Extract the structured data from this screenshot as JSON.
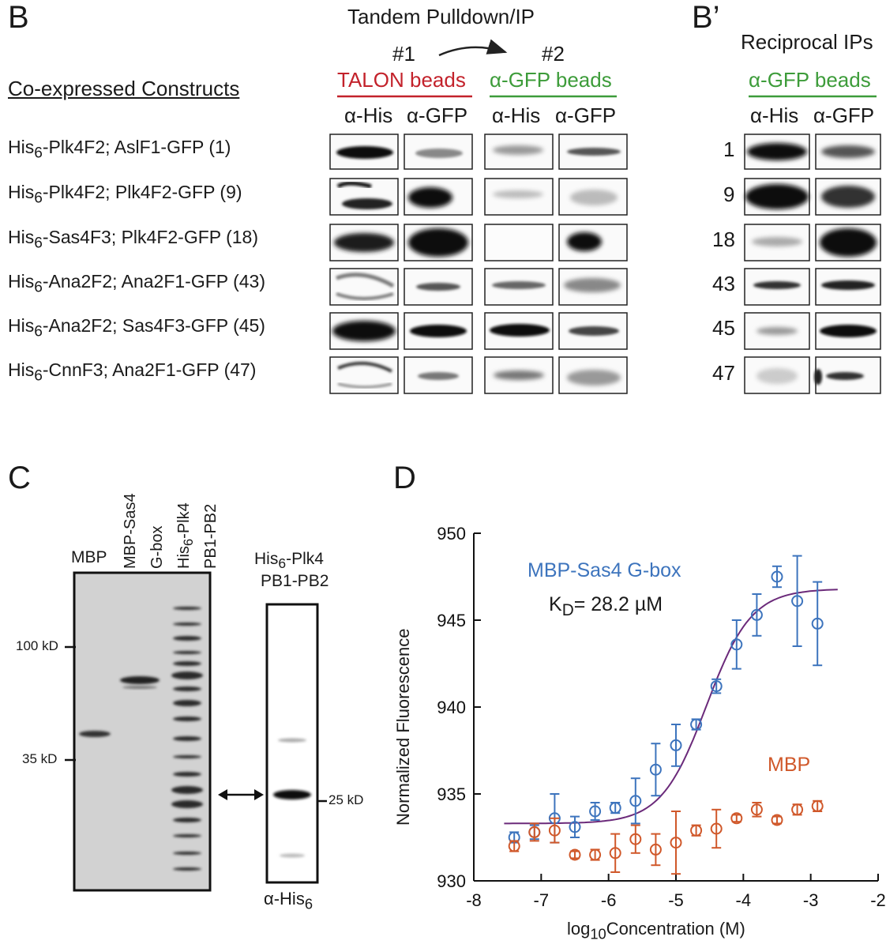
{
  "panelB": {
    "letter": "B",
    "title": "Tandem Pulldown/IP",
    "step1": "#1",
    "step2": "#2",
    "beads1": "TALON beads",
    "beads2": "α-GFP beads",
    "colHeaders": [
      "α-His",
      "α-GFP",
      "α-His",
      "α-GFP"
    ],
    "constructsHeader": "Co-expressed Constructs",
    "constructs": [
      {
        "pre": "His",
        "sub": "6",
        "post": "-Plk4F2; AslF1-GFP (1)"
      },
      {
        "pre": "His",
        "sub": "6",
        "post": "-Plk4F2; Plk4F2-GFP (9)"
      },
      {
        "pre": "His",
        "sub": "6",
        "post": "-Sas4F3; Plk4F2-GFP (18)"
      },
      {
        "pre": "His",
        "sub": "6",
        "post": "-Ana2F2; Ana2F1-GFP (43)"
      },
      {
        "pre": "His",
        "sub": "6",
        "post": "-Ana2F2; Sas4F3-GFP (45)"
      },
      {
        "pre": "His",
        "sub": "6",
        "post": "-CnnF3; Ana2F1-GFP (47)"
      }
    ]
  },
  "panelBprime": {
    "letter": "B’",
    "title": "Reciprocal IPs",
    "beads": "α-GFP beads",
    "colHeaders": [
      "α-His",
      "α-GFP"
    ],
    "rows": [
      "1",
      "9",
      "18",
      "43",
      "45",
      "47"
    ]
  },
  "panelC": {
    "letter": "C",
    "lanes": [
      "MBP",
      "MBP-Sas4",
      "G-box",
      "His6-Plk4",
      "PB1-PB2"
    ],
    "lane_his": {
      "pre": "His",
      "sub": "6",
      "post": "-Plk4"
    },
    "markers": [
      "100 kD",
      "35 kD"
    ],
    "inset_title1": {
      "pre": "His",
      "sub": "6",
      "post": "-Plk4"
    },
    "inset_title2": "PB1-PB2",
    "inset_marker": "25 kD",
    "inset_antibody": {
      "pre": "α-His",
      "sub": "6"
    }
  },
  "panelD": {
    "letter": "D",
    "chart_data": {
      "type": "scatter",
      "title": "",
      "xlabel": {
        "pre": "log",
        "sub": "10",
        "post": "Concentration (M)"
      },
      "ylabel": "Normalized Fluorescence",
      "xlim": [
        -8,
        -2
      ],
      "ylim": [
        930,
        950
      ],
      "xticks": [
        -8,
        -7,
        -6,
        -5,
        -4,
        -3,
        -2
      ],
      "yticks": [
        930,
        935,
        940,
        945,
        950
      ],
      "annotation": {
        "pre": "K",
        "sub": "D",
        "post": "= 28.2 µM"
      },
      "series": [
        {
          "name": "MBP-Sas4 G-box",
          "color": "#3d74bd",
          "x": [
            -7.4,
            -7.1,
            -6.8,
            -6.5,
            -6.2,
            -5.9,
            -5.6,
            -5.3,
            -5.0,
            -4.7,
            -4.4,
            -4.1,
            -3.8,
            -3.5,
            -3.2,
            -2.9
          ],
          "y": [
            932.5,
            932.8,
            933.6,
            933.1,
            934.0,
            934.2,
            934.6,
            936.4,
            937.8,
            939.0,
            941.2,
            943.6,
            945.3,
            947.5,
            946.1,
            944.8
          ],
          "err": [
            0.3,
            0.4,
            1.4,
            0.6,
            0.5,
            0.3,
            1.3,
            1.5,
            1.2,
            0.3,
            0.4,
            1.4,
            1.2,
            0.6,
            2.6,
            2.4
          ]
        },
        {
          "name": "MBP",
          "color": "#d0582a",
          "x": [
            -7.4,
            -7.1,
            -6.8,
            -6.5,
            -6.2,
            -5.9,
            -5.6,
            -5.3,
            -5.0,
            -4.7,
            -4.4,
            -4.1,
            -3.8,
            -3.5,
            -3.2,
            -2.9
          ],
          "y": [
            932.0,
            932.8,
            932.9,
            931.5,
            931.5,
            931.6,
            932.4,
            931.8,
            932.2,
            932.9,
            933.0,
            933.6,
            934.1,
            933.5,
            934.1,
            934.3
          ],
          "err": [
            0.3,
            0.5,
            0.7,
            0.2,
            0.3,
            1.1,
            0.8,
            0.9,
            1.8,
            0.3,
            1.1,
            0.2,
            0.4,
            0.2,
            0.3,
            0.3
          ]
        }
      ],
      "fit": {
        "type": "sigmoid",
        "name": "fit",
        "color": "#6b2a7a",
        "bottom": 933.3,
        "top": 946.8,
        "logKd": -4.55,
        "hill": 1.3,
        "xrange": [
          -7.55,
          -2.6
        ]
      }
    }
  }
}
